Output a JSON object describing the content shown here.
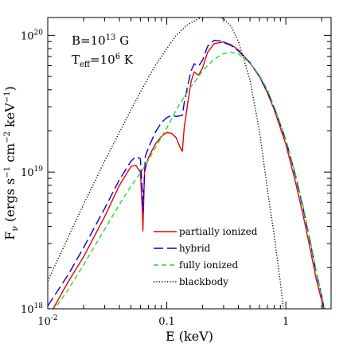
{
  "chart_data": {
    "type": "line",
    "xlabel": "E (keV)",
    "ylabel": "F_ν (ergs s⁻¹ cm⁻² keV⁻¹)",
    "xscale": "log",
    "yscale": "log",
    "xlim": [
      0.01,
      2.4
    ],
    "ylim": [
      1e+18,
      1.35e+20
    ],
    "x_ticks": [
      {
        "value": 0.01,
        "base": "10",
        "exp": "-2"
      },
      {
        "value": 0.1,
        "base": "0.1",
        "exp": ""
      },
      {
        "value": 1,
        "base": "1",
        "exp": ""
      }
    ],
    "y_ticks": [
      {
        "value": 1e+18,
        "base": "10",
        "exp": "18"
      },
      {
        "value": 1e+19,
        "base": "10",
        "exp": "19"
      },
      {
        "value": 1e+20,
        "base": "10",
        "exp": "20"
      }
    ],
    "annotations": [
      {
        "base": "B=10",
        "sup": "13",
        "tail": " G"
      },
      {
        "base": "T",
        "sub": "eff",
        "mid": "=10",
        "sup": "6",
        "tail": " K"
      }
    ],
    "legend_position": "bottom-right",
    "series": [
      {
        "name": "partially ionized",
        "color": "#ee0000",
        "dash": "solid",
        "points": [
          [
            0.0105,
            9.2e+17
          ],
          [
            0.015,
            1.6e+18
          ],
          [
            0.02,
            2.4e+18
          ],
          [
            0.03,
            4.7e+18
          ],
          [
            0.04,
            8e+18
          ],
          [
            0.05,
            1.1e+19
          ],
          [
            0.055,
            1.12e+19
          ],
          [
            0.06,
            1e+19
          ],
          [
            0.0625,
            5e+18
          ],
          [
            0.063,
            3.7e+18
          ],
          [
            0.0636,
            5e+18
          ],
          [
            0.065,
            1e+19
          ],
          [
            0.07,
            1.27e+19
          ],
          [
            0.08,
            1.6e+19
          ],
          [
            0.09,
            1.82e+19
          ],
          [
            0.1,
            1.95e+19
          ],
          [
            0.11,
            1.92e+19
          ],
          [
            0.12,
            1.78e+19
          ],
          [
            0.13,
            1.5e+19
          ],
          [
            0.135,
            1.42e+19
          ],
          [
            0.14,
            2.1e+19
          ],
          [
            0.15,
            3.2e+19
          ],
          [
            0.16,
            4.6e+19
          ],
          [
            0.17,
            5.4e+19
          ],
          [
            0.185,
            5.1e+19
          ],
          [
            0.2,
            5.8e+19
          ],
          [
            0.22,
            7.5e+19
          ],
          [
            0.25,
            8.7e+19
          ],
          [
            0.3,
            8.95e+19
          ],
          [
            0.35,
            8.5e+19
          ],
          [
            0.4,
            7.8e+19
          ],
          [
            0.5,
            6.3e+19
          ],
          [
            0.6,
            5e+19
          ],
          [
            0.7,
            3.8e+19
          ],
          [
            0.8,
            2.85e+19
          ],
          [
            1.0,
            1.6e+19
          ],
          [
            1.2,
            8.6e+18
          ],
          [
            1.4,
            4.8e+18
          ],
          [
            1.6,
            2.75e+18
          ],
          [
            1.8,
            1.65e+18
          ],
          [
            2.0,
            1.15e+18
          ],
          [
            2.15,
            8.5e+17
          ]
        ]
      },
      {
        "name": "hybrid",
        "color": "#0000dd",
        "dash": "12,5",
        "points": [
          [
            0.01,
            1.05e+18
          ],
          [
            0.015,
            1.8e+18
          ],
          [
            0.02,
            2.8e+18
          ],
          [
            0.03,
            5.4e+18
          ],
          [
            0.04,
            8.8e+18
          ],
          [
            0.05,
            1.2e+19
          ],
          [
            0.055,
            1.3e+19
          ],
          [
            0.06,
            1.25e+19
          ],
          [
            0.0625,
            7e+18
          ],
          [
            0.0632,
            5.2e+18
          ],
          [
            0.064,
            7e+18
          ],
          [
            0.066,
            1.3e+19
          ],
          [
            0.07,
            1.5e+19
          ],
          [
            0.08,
            1.95e+19
          ],
          [
            0.09,
            2.3e+19
          ],
          [
            0.1,
            2.5e+19
          ],
          [
            0.11,
            2.6e+19
          ],
          [
            0.12,
            2.55e+19
          ],
          [
            0.135,
            2.6e+19
          ],
          [
            0.14,
            3.2e+19
          ],
          [
            0.15,
            4.3e+19
          ],
          [
            0.16,
            5.5e+19
          ],
          [
            0.17,
            6.2e+19
          ],
          [
            0.185,
            5.95e+19
          ],
          [
            0.2,
            6.6e+19
          ],
          [
            0.22,
            8.3e+19
          ],
          [
            0.25,
            9.2e+19
          ],
          [
            0.28,
            9.1e+19
          ],
          [
            0.3,
            8.85e+19
          ],
          [
            0.35,
            8.4e+19
          ],
          [
            0.4,
            7.7e+19
          ],
          [
            0.5,
            6.3e+19
          ],
          [
            0.6,
            5e+19
          ],
          [
            0.7,
            3.9e+19
          ],
          [
            0.8,
            2.95e+19
          ],
          [
            1.0,
            1.72e+19
          ],
          [
            1.2,
            9.5e+18
          ],
          [
            1.4,
            5.4e+18
          ],
          [
            1.6,
            3.1e+18
          ],
          [
            1.8,
            1.85e+18
          ],
          [
            2.0,
            1.25e+18
          ],
          [
            2.15,
            9e+17
          ]
        ]
      },
      {
        "name": "fully ionized",
        "color": "#22dd22",
        "dash": "6,4",
        "points": [
          [
            0.01,
            8.5e+17
          ],
          [
            0.015,
            1.4e+18
          ],
          [
            0.02,
            2.1e+18
          ],
          [
            0.03,
            3.8e+18
          ],
          [
            0.04,
            5.8e+18
          ],
          [
            0.05,
            7.9e+18
          ],
          [
            0.06,
            9.8e+18
          ],
          [
            0.07,
            1.22e+19
          ],
          [
            0.08,
            1.5e+19
          ],
          [
            0.1,
            2.1e+19
          ],
          [
            0.12,
            2.85e+19
          ],
          [
            0.15,
            3.9e+19
          ],
          [
            0.2,
            5.5e+19
          ],
          [
            0.25,
            6.7e+19
          ],
          [
            0.3,
            7.35e+19
          ],
          [
            0.35,
            7.5e+19
          ],
          [
            0.4,
            7.3e+19
          ],
          [
            0.5,
            6.3e+19
          ],
          [
            0.6,
            5.1e+19
          ],
          [
            0.7,
            4e+19
          ],
          [
            0.8,
            3e+19
          ],
          [
            1.0,
            1.75e+19
          ],
          [
            1.2,
            9.8e+18
          ],
          [
            1.4,
            5.6e+18
          ],
          [
            1.6,
            3.2e+18
          ],
          [
            1.8,
            1.9e+18
          ],
          [
            2.0,
            1.25e+18
          ],
          [
            2.2,
            8.5e+17
          ]
        ]
      },
      {
        "name": "blackbody",
        "color": "#000000",
        "dash": "1.2,2.2",
        "points": [
          [
            0.01,
            1.6e+18
          ],
          [
            0.013,
            2.6e+18
          ],
          [
            0.017,
            4.3e+18
          ],
          [
            0.02,
            5.8e+18
          ],
          [
            0.03,
            1.2e+19
          ],
          [
            0.04,
            1.95e+19
          ],
          [
            0.05,
            2.85e+19
          ],
          [
            0.06,
            3.85e+19
          ],
          [
            0.07,
            4.9e+19
          ],
          [
            0.08,
            6e+19
          ],
          [
            0.1,
            8e+19
          ],
          [
            0.12,
            1e+20
          ],
          [
            0.15,
            1.2e+20
          ],
          [
            0.2,
            1.37e+20
          ],
          [
            0.25,
            1.4e+20
          ],
          [
            0.3,
            1.32e+20
          ],
          [
            0.35,
            1.15e+20
          ],
          [
            0.4,
            9e+19
          ],
          [
            0.5,
            4.7e+19
          ],
          [
            0.6,
            2e+19
          ],
          [
            0.7,
            7.5e+18
          ],
          [
            0.8,
            3.4e+18
          ],
          [
            0.9,
            1.55e+18
          ],
          [
            0.97,
            9e+17
          ]
        ]
      }
    ]
  }
}
